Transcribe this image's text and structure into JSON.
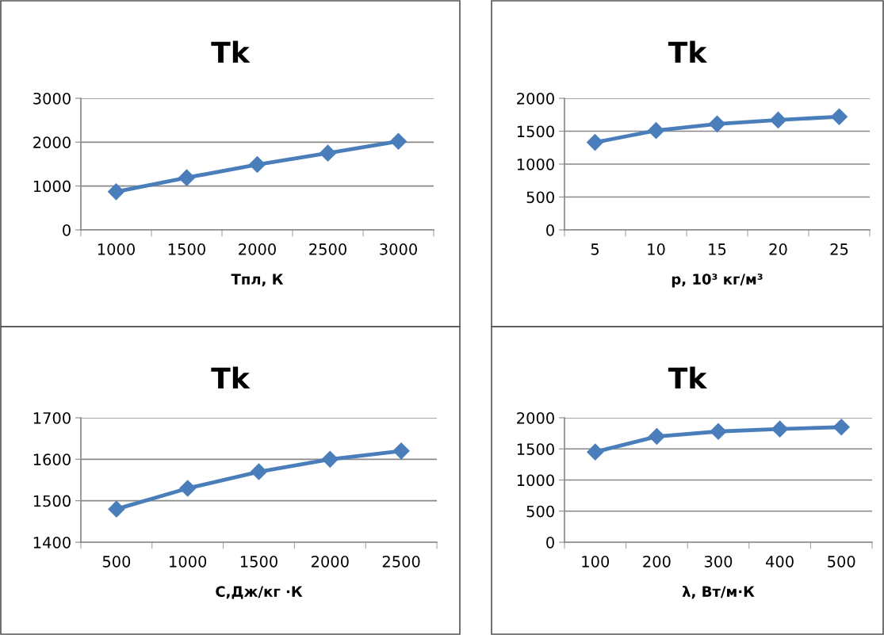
{
  "chart_data": [
    {
      "type": "line",
      "title": "Tk",
      "xlabel": "Тпл, К",
      "categories": [
        "1000",
        "1500",
        "2000",
        "2500",
        "3000"
      ],
      "series": [
        {
          "color": "#4a7ebb",
          "values": [
            870,
            1190,
            1490,
            1750,
            2020
          ]
        }
      ],
      "ylim": [
        0,
        3000
      ],
      "yticks": [
        0,
        1000,
        2000,
        3000
      ],
      "grid": "y",
      "marker": "diamond",
      "line_style": "solid",
      "legend": false
    },
    {
      "type": "line",
      "title": "Tk",
      "xlabel": "р, 10³ кг/м³",
      "categories": [
        "5",
        "10",
        "15",
        "20",
        "25"
      ],
      "series": [
        {
          "color": "#4a7ebb",
          "values": [
            1330,
            1510,
            1610,
            1670,
            1720
          ]
        }
      ],
      "ylim": [
        0,
        2000
      ],
      "yticks": [
        0,
        500,
        1000,
        1500,
        2000
      ],
      "grid": "y",
      "marker": "diamond",
      "line_style": "solid",
      "legend": false
    },
    {
      "type": "line",
      "title": "Tk",
      "xlabel": "С,Дж/кг ·К",
      "categories": [
        "500",
        "1000",
        "1500",
        "2000",
        "2500"
      ],
      "series": [
        {
          "color": "#4a7ebb",
          "values": [
            1480,
            1530,
            1570,
            1600,
            1620
          ]
        }
      ],
      "ylim": [
        1400,
        1700
      ],
      "yticks": [
        1400,
        1500,
        1600,
        1700
      ],
      "grid": "y",
      "marker": "diamond",
      "line_style": "solid",
      "legend": false
    },
    {
      "type": "line",
      "title": "Tk",
      "xlabel": "λ, Вт/м·К",
      "categories": [
        "100",
        "200",
        "300",
        "400",
        "500"
      ],
      "series": [
        {
          "color": "#4a7ebb",
          "values": [
            1450,
            1700,
            1780,
            1820,
            1850
          ]
        }
      ],
      "ylim": [
        0,
        2000
      ],
      "yticks": [
        0,
        500,
        1000,
        1500,
        2000
      ],
      "grid": "y",
      "marker": "diamond",
      "line_style": "solid",
      "legend": false
    }
  ]
}
